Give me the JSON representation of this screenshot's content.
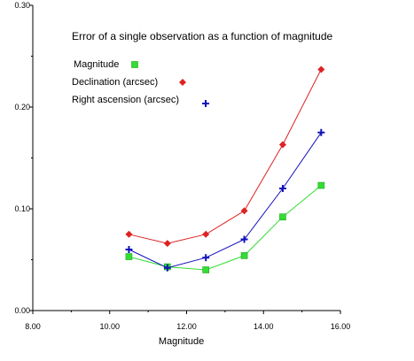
{
  "chart_data": {
    "type": "line",
    "title": "Error of a single observation as a function of magnitude",
    "xlabel": "Magnitude",
    "ylabel": "",
    "xlim": [
      8,
      16
    ],
    "ylim": [
      0,
      0.3
    ],
    "x_ticks": [
      "8.00",
      "10.00",
      "12.00",
      "14.00",
      "16.00"
    ],
    "y_ticks": [
      "0.00",
      "0.10",
      "0.20",
      "0.30"
    ],
    "x": [
      10.5,
      11.5,
      12.5,
      13.5,
      14.5,
      15.5
    ],
    "grid": false,
    "legend_position": "top-left",
    "series": [
      {
        "name": "Magnitude",
        "color": "#33dd33",
        "marker": "square",
        "values": [
          0.053,
          0.043,
          0.04,
          0.054,
          0.092,
          0.123
        ]
      },
      {
        "name": "Declination (arcsec)",
        "color": "#dd2222",
        "marker": "diamond",
        "values": [
          0.075,
          0.066,
          0.075,
          0.098,
          0.163,
          0.237
        ]
      },
      {
        "name": "Right ascension (arcsec)",
        "color": "#1111bb",
        "marker": "plus",
        "values": [
          0.06,
          0.042,
          0.052,
          0.07,
          0.12,
          0.175
        ]
      }
    ]
  }
}
